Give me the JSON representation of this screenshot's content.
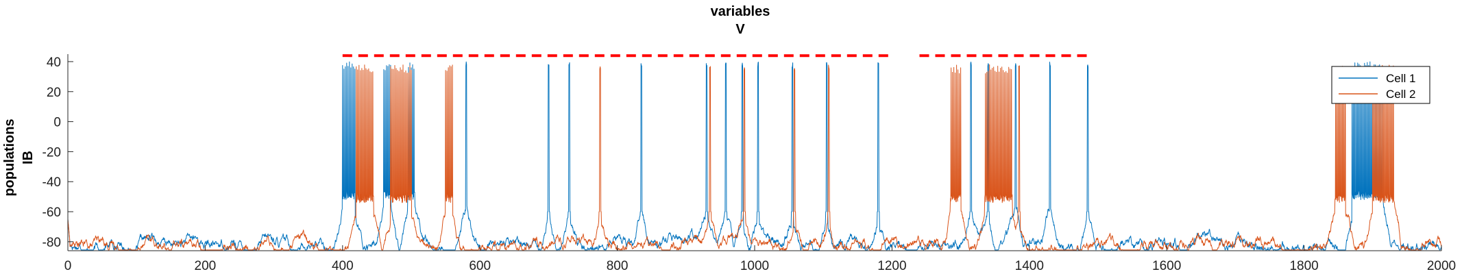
{
  "chart_data": {
    "type": "line",
    "title": [
      "variables",
      "V"
    ],
    "ylabel": [
      "populations",
      "IB"
    ],
    "xlabel": "",
    "xlim": [
      0,
      2000
    ],
    "ylim": [
      -86,
      45
    ],
    "xticks": [
      0,
      200,
      400,
      600,
      800,
      1000,
      1200,
      1400,
      1600,
      1800,
      2000
    ],
    "yticks": [
      -80,
      -60,
      -40,
      -20,
      0,
      20,
      40
    ],
    "grid": false,
    "legend_position": "top-right",
    "dashed_marker": {
      "y": 44,
      "x_ranges": [
        [
          400,
          1200
        ],
        [
          1240,
          1490
        ]
      ],
      "color": "#ff0000"
    },
    "series": [
      {
        "name": "Cell 1",
        "color": "#0072BD",
        "baseline": -82,
        "bursts": [
          [
            400,
            418
          ],
          [
            460,
            470
          ],
          [
            495,
            505
          ],
          [
            1870,
            1915
          ]
        ],
        "spikes": [
          580,
          700,
          730,
          835,
          930,
          958,
          982,
          1005,
          1055,
          1105,
          1180,
          1315,
          1340,
          1380,
          1430,
          1485
        ],
        "spike_peak": 40,
        "burst_floor": -52
      },
      {
        "name": "Cell 2",
        "color": "#D95319",
        "baseline": -83,
        "bursts": [
          [
            420,
            445
          ],
          [
            470,
            500
          ],
          [
            550,
            560
          ],
          [
            1285,
            1300
          ],
          [
            1335,
            1375
          ],
          [
            1845,
            1860
          ],
          [
            1900,
            1930
          ]
        ],
        "spikes": [
          775,
          935,
          985,
          1058,
          1108,
          1385
        ],
        "spike_peak": 38,
        "burst_floor": -54
      }
    ]
  }
}
